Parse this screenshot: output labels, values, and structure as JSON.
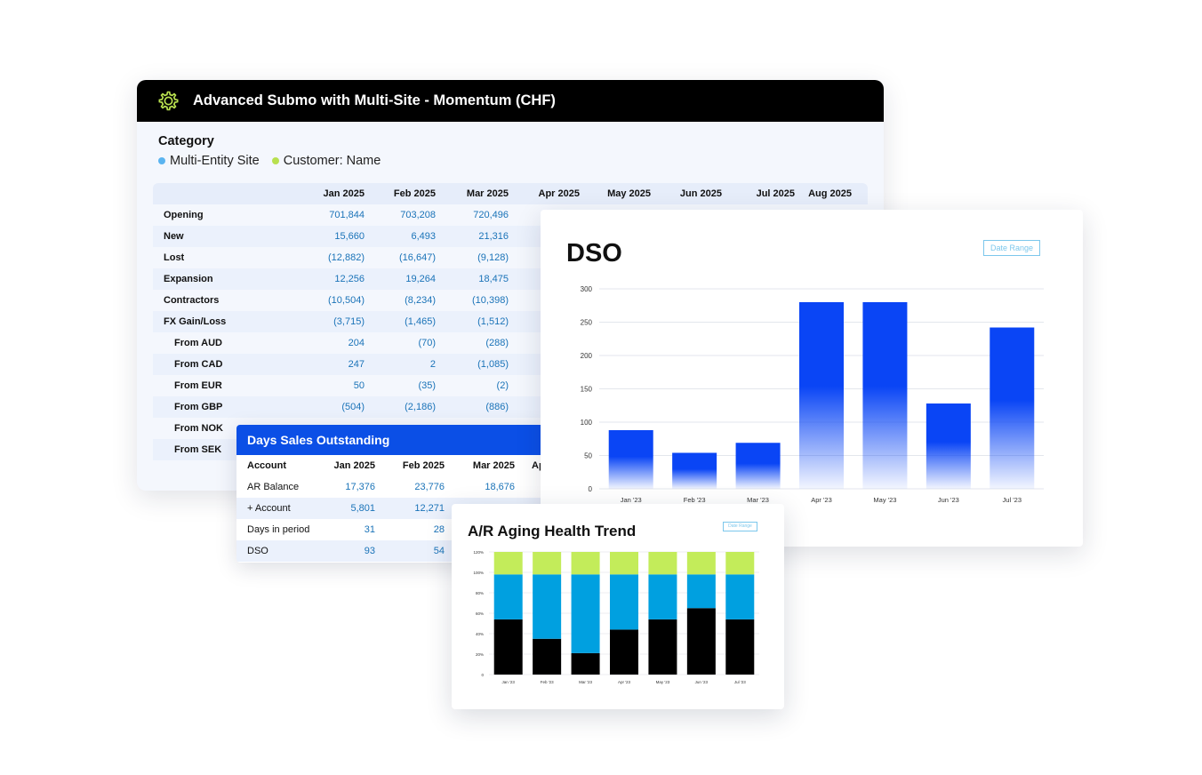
{
  "main_panel": {
    "title": "Advanced Submo with Multi-Site - Momentum (CHF)",
    "category_label": "Category",
    "legend": [
      {
        "label": "Multi-Entity Site",
        "color": "#5ab4f0"
      },
      {
        "label": "Customer: Name",
        "color": "#b8e04f"
      }
    ],
    "table": {
      "columns": [
        "Jan 2025",
        "Feb 2025",
        "Mar 2025",
        "Apr 2025",
        "May 2025",
        "Jun 2025",
        "Jul 2025",
        "Aug 2025"
      ],
      "rows": [
        {
          "label": "Opening",
          "values": [
            "701,844",
            "703,208",
            "720,496"
          ]
        },
        {
          "label": "New",
          "values": [
            "15,660",
            "6,493",
            "21,316"
          ]
        },
        {
          "label": "Lost",
          "values": [
            "(12,882)",
            "(16,647)",
            "(9,128)"
          ]
        },
        {
          "label": "Expansion",
          "values": [
            "12,256",
            "19,264",
            "18,475"
          ]
        },
        {
          "label": "Contractors",
          "values": [
            "(10,504)",
            "(8,234)",
            "(10,398)"
          ]
        },
        {
          "label": "FX Gain/Loss",
          "values": [
            "(3,715)",
            "(1,465)",
            "(1,512)"
          ]
        },
        {
          "label": "From AUD",
          "values": [
            "204",
            "(70)",
            "(288)"
          ]
        },
        {
          "label": "From CAD",
          "values": [
            "247",
            "2",
            "(1,085)"
          ]
        },
        {
          "label": "From EUR",
          "values": [
            "50",
            "(35)",
            "(2)"
          ]
        },
        {
          "label": "From GBP",
          "values": [
            "(504)",
            "(2,186)",
            "(886)"
          ]
        },
        {
          "label": "From NOK",
          "values": [
            "",
            "",
            ""
          ]
        },
        {
          "label": "From SEK",
          "values": [
            "",
            "",
            ""
          ]
        }
      ]
    }
  },
  "dso_table": {
    "title": "Days Sales Outstanding",
    "columns": [
      "Account",
      "Jan 2025",
      "Feb 2025",
      "Mar 2025",
      "Ap"
    ],
    "rows": [
      {
        "label": "AR Balance",
        "values": [
          "17,376",
          "23,776",
          "18,676"
        ]
      },
      {
        "label": "+ Account",
        "values": [
          "5,801",
          "12,271",
          ""
        ]
      },
      {
        "label": "Days in period",
        "values": [
          "31",
          "28",
          ""
        ]
      },
      {
        "label": "DSO",
        "values": [
          "93",
          "54",
          ""
        ]
      }
    ]
  },
  "dso_chart": {
    "date_range_label": "Date Range",
    "colors": {
      "bar": "#0a45f5",
      "grid": "#e3e6ec",
      "axis_text": "#333333"
    },
    "chart_data": {
      "type": "bar",
      "title": "DSO",
      "categories": [
        "Jan '23",
        "Feb '23",
        "Mar '23",
        "Apr '23",
        "May '23",
        "Jun '23",
        "Jul '23"
      ],
      "values": [
        88,
        54,
        69,
        280,
        280,
        128,
        242
      ],
      "ylim": [
        0,
        300
      ],
      "yticks": [
        0,
        50,
        100,
        150,
        200,
        250,
        300
      ],
      "grid": true
    }
  },
  "ar_chart": {
    "date_range_label": "Date Range",
    "chart_data": {
      "type": "bar",
      "stacked": true,
      "title": "A/R Aging Health Trend",
      "categories": [
        "Jan '23",
        "Feb '23",
        "Mar '23",
        "Apr '23",
        "May '23",
        "Jun '23",
        "Jul '23"
      ],
      "yticks": [
        "0",
        "20%",
        "40%",
        "60%",
        "80%",
        "100%",
        "120%"
      ],
      "ylim": [
        0,
        120
      ],
      "series": [
        {
          "values": [
            54,
            35,
            21,
            44,
            54,
            65,
            54
          ],
          "color": "#000000"
        },
        {
          "values": [
            44,
            63,
            77,
            54,
            44,
            33,
            44
          ],
          "color": "#00a0e0"
        },
        {
          "values": [
            22,
            22,
            22,
            22,
            22,
            22,
            22
          ],
          "color": "#c3ec5a"
        }
      ],
      "grid": true
    }
  }
}
